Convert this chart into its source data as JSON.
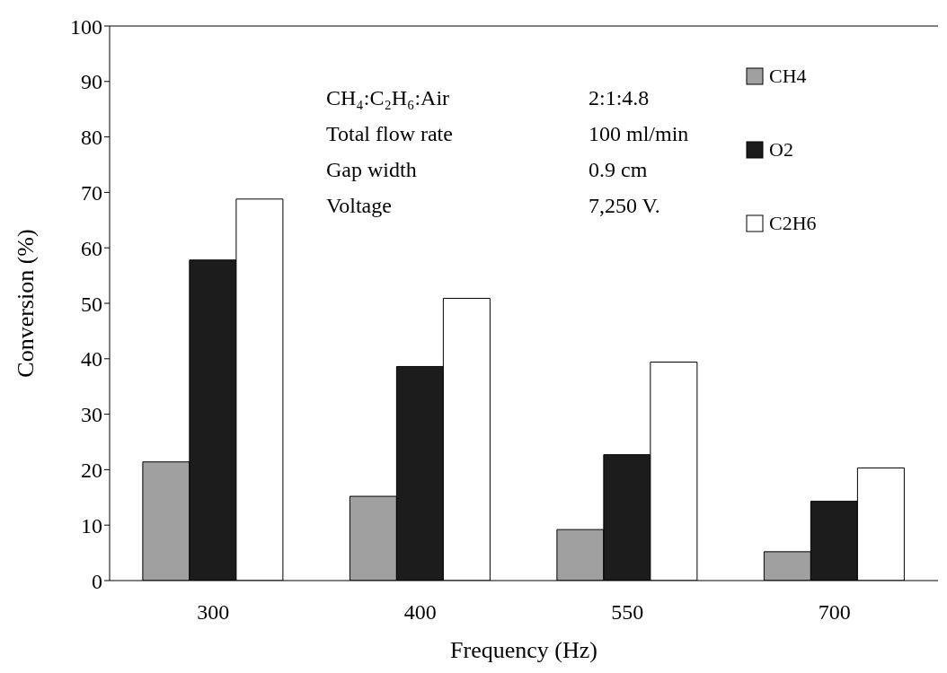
{
  "chart_data": {
    "type": "bar",
    "xlabel": "Frequency (Hz)",
    "ylabel": "Conversion (%)",
    "categories": [
      "300",
      "400",
      "550",
      "700"
    ],
    "series": [
      {
        "name": "CH4",
        "color": "#a0a0a0",
        "values": [
          21.4,
          15.2,
          9.2,
          5.2
        ]
      },
      {
        "name": "O2",
        "color": "#1c1c1c",
        "values": [
          57.8,
          38.6,
          22.7,
          14.3
        ]
      },
      {
        "name": "C2H6",
        "color": "#ffffff",
        "values": [
          68.8,
          50.9,
          39.4,
          20.3
        ]
      }
    ],
    "ylim": [
      0,
      100
    ],
    "yticks": [
      0,
      10,
      20,
      30,
      40,
      50,
      60,
      70,
      80,
      90,
      100
    ],
    "grid": false,
    "legend": "top right",
    "annotations": [
      "CH₄:C₂H₆:Air",
      "2:1:4.8",
      "Total flow rate",
      "100 ml/min",
      "Gap width",
      "0.9 cm",
      "Voltage",
      "7,250 V."
    ]
  }
}
